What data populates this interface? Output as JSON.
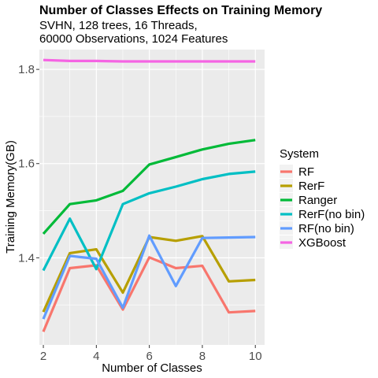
{
  "chart_data": {
    "type": "line",
    "title": "Number of Classes Effects on Training Memory",
    "subtitle_lines": [
      "SVHN, 128 trees, 16 Threads,",
      "60000 Observations, 1024 Features"
    ],
    "xlabel": "Number of Classes",
    "ylabel": "Training Memory(GB)",
    "x": [
      2,
      3,
      4,
      5,
      6,
      7,
      8,
      9,
      10
    ],
    "xlim": [
      1.85,
      10.35
    ],
    "ylim": [
      1.215,
      1.842
    ],
    "x_ticks": [
      2,
      4,
      6,
      8,
      10
    ],
    "x_tick_labels": [
      "2",
      "4",
      "6",
      "8",
      "10"
    ],
    "y_ticks": [
      1.4,
      1.6,
      1.8
    ],
    "y_tick_labels": [
      "1.4",
      "1.6",
      "1.8"
    ],
    "grid": true,
    "legend": {
      "title": "System",
      "position": "right"
    },
    "series": [
      {
        "name": "RF",
        "color": "#F8766D",
        "values": [
          1.243,
          1.378,
          1.384,
          1.29,
          1.401,
          1.378,
          1.383,
          1.284,
          1.287
        ]
      },
      {
        "name": "RerF",
        "color": "#B79F00",
        "values": [
          1.285,
          1.41,
          1.418,
          1.326,
          1.444,
          1.436,
          1.446,
          1.35,
          1.353
        ]
      },
      {
        "name": "Ranger",
        "color": "#00BA38",
        "values": [
          1.451,
          1.514,
          1.522,
          1.542,
          1.598,
          1.614,
          1.63,
          1.642,
          1.65
        ]
      },
      {
        "name": "RerF(no bin)",
        "color": "#00BFC4",
        "values": [
          1.373,
          1.483,
          1.376,
          1.514,
          1.537,
          1.551,
          1.567,
          1.578,
          1.583
        ]
      },
      {
        "name": "RF(no bin)",
        "color": "#619CFF",
        "values": [
          1.27,
          1.404,
          1.398,
          1.294,
          1.447,
          1.34,
          1.442,
          1.443,
          1.444
        ]
      },
      {
        "name": "XGBoost",
        "color": "#F564E3",
        "values": [
          1.82,
          1.818,
          1.818,
          1.817,
          1.817,
          1.817,
          1.817,
          1.817,
          1.817
        ]
      }
    ]
  }
}
